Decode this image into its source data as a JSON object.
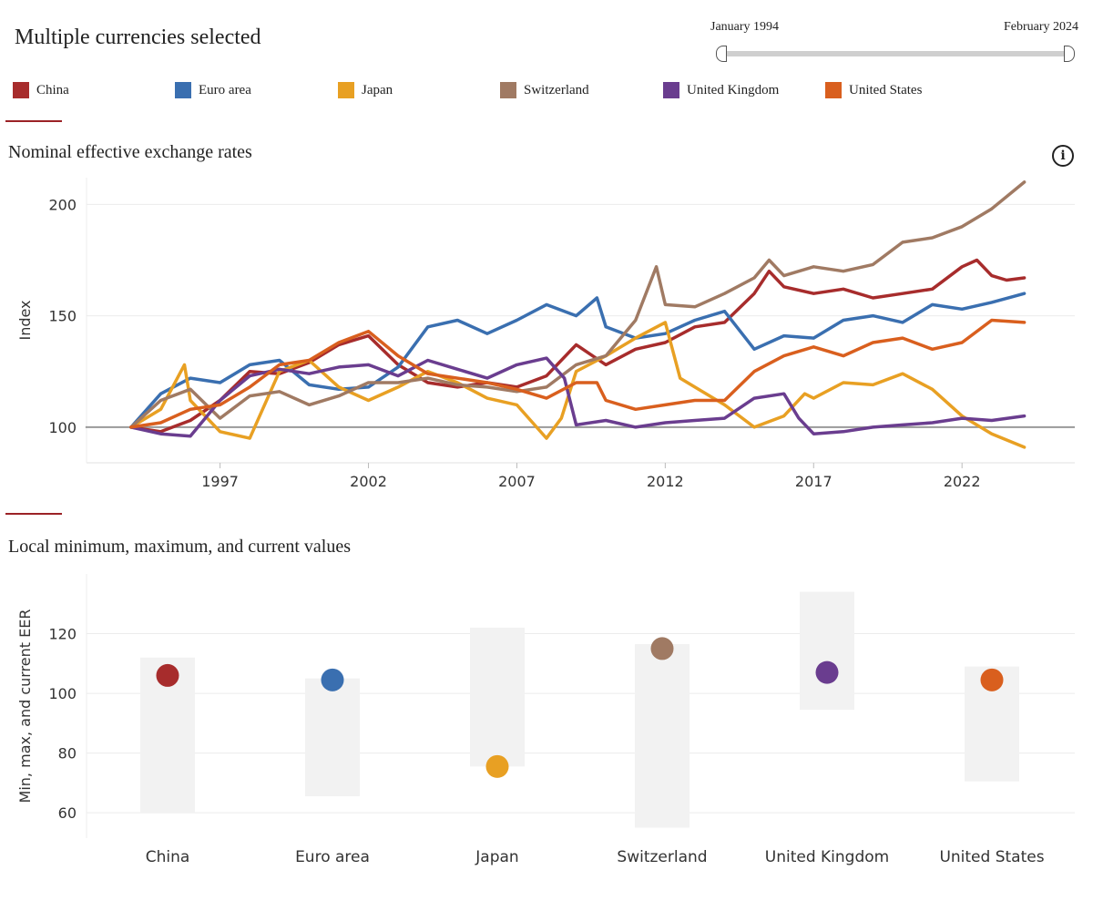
{
  "header": {
    "title": "Multiple currencies selected",
    "range_start": "January 1994",
    "range_end": "February 2024"
  },
  "legend": [
    {
      "name": "China",
      "color": "#a72c2c"
    },
    {
      "name": "Euro area",
      "color": "#3a6fb0"
    },
    {
      "name": "Japan",
      "color": "#e8a023"
    },
    {
      "name": "Switzerland",
      "color": "#a07a63"
    },
    {
      "name": "United Kingdom",
      "color": "#6a3d8f"
    },
    {
      "name": "United States",
      "color": "#d95f1e"
    }
  ],
  "line_section": {
    "title": "Nominal effective exchange rates",
    "info_icon": "info-icon"
  },
  "range_section": {
    "title": "Local minimum, maximum, and current values"
  },
  "chart_data": [
    {
      "type": "line",
      "title": "Nominal effective exchange rates",
      "xlabel": "",
      "ylabel": "Index",
      "xlim": [
        1992.5,
        2025.8
      ],
      "ylim": [
        84,
        212
      ],
      "xticks": [
        1997,
        2002,
        2007,
        2012,
        2017,
        2022
      ],
      "yticks": [
        100,
        150,
        200
      ],
      "baseline": 100,
      "series": [
        {
          "name": "China",
          "color": "#a72c2c",
          "x": [
            1994,
            1995,
            1996,
            1997,
            1998,
            1999,
            2000,
            2001,
            2002,
            2003,
            2004,
            2005,
            2006,
            2007,
            2008,
            2009,
            2010,
            2011,
            2012,
            2013,
            2014,
            2015,
            2015.5,
            2016,
            2017,
            2018,
            2019,
            2020,
            2021,
            2022,
            2022.5,
            2023,
            2023.5,
            2024.1
          ],
          "y": [
            100,
            98,
            103,
            112,
            125,
            124,
            129,
            137,
            141,
            128,
            120,
            118,
            120,
            118,
            123,
            137,
            128,
            135,
            138,
            145,
            147,
            160,
            170,
            163,
            160,
            162,
            158,
            160,
            162,
            172,
            175,
            168,
            166,
            167
          ]
        },
        {
          "name": "Euro area",
          "color": "#3a6fb0",
          "x": [
            1994,
            1995,
            1996,
            1997,
            1998,
            1999,
            2000,
            2001,
            2002,
            2003,
            2004,
            2005,
            2006,
            2007,
            2008,
            2009,
            2009.7,
            2010,
            2011,
            2012,
            2013,
            2014,
            2015,
            2016,
            2017,
            2018,
            2019,
            2020,
            2021,
            2022,
            2023,
            2024.1
          ],
          "y": [
            100,
            115,
            122,
            120,
            128,
            130,
            119,
            117,
            118,
            127,
            145,
            148,
            142,
            148,
            155,
            150,
            158,
            145,
            140,
            142,
            148,
            152,
            135,
            141,
            140,
            148,
            150,
            147,
            155,
            153,
            156,
            160
          ]
        },
        {
          "name": "Japan",
          "color": "#e8a023",
          "x": [
            1994,
            1995,
            1995.8,
            1996,
            1997,
            1998,
            1999,
            2000,
            2001,
            2002,
            2003,
            2004,
            2005,
            2006,
            2007,
            2008,
            2008.5,
            2009,
            2010,
            2011,
            2012,
            2012.5,
            2013,
            2014,
            2015,
            2016,
            2016.7,
            2017,
            2018,
            2019,
            2020,
            2021,
            2022,
            2023,
            2024.1
          ],
          "y": [
            100,
            108,
            128,
            112,
            98,
            95,
            125,
            130,
            118,
            112,
            118,
            125,
            120,
            113,
            110,
            95,
            104,
            125,
            132,
            140,
            147,
            122,
            118,
            110,
            100,
            105,
            115,
            113,
            120,
            119,
            124,
            117,
            105,
            97,
            91
          ]
        },
        {
          "name": "Switzerland",
          "color": "#a07a63",
          "x": [
            1994,
            1995,
            1996,
            1997,
            1998,
            1999,
            2000,
            2001,
            2002,
            2003,
            2004,
            2005,
            2006,
            2007,
            2008,
            2009,
            2010,
            2011,
            2011.7,
            2012,
            2013,
            2014,
            2015,
            2015.5,
            2016,
            2017,
            2018,
            2019,
            2020,
            2021,
            2022,
            2023,
            2024.1
          ],
          "y": [
            100,
            112,
            117,
            104,
            114,
            116,
            110,
            114,
            120,
            120,
            122,
            119,
            118,
            116,
            118,
            128,
            132,
            148,
            172,
            155,
            154,
            160,
            167,
            175,
            168,
            172,
            170,
            173,
            183,
            185,
            190,
            198,
            210
          ]
        },
        {
          "name": "United Kingdom",
          "color": "#6a3d8f",
          "x": [
            1994,
            1995,
            1996,
            1997,
            1998,
            1999,
            2000,
            2001,
            2002,
            2003,
            2004,
            2005,
            2006,
            2007,
            2008,
            2008.6,
            2009,
            2010,
            2011,
            2012,
            2013,
            2014,
            2015,
            2016,
            2016.5,
            2017,
            2018,
            2019,
            2020,
            2021,
            2022,
            2023,
            2024.1
          ],
          "y": [
            100,
            97,
            96,
            112,
            123,
            126,
            124,
            127,
            128,
            123,
            130,
            126,
            122,
            128,
            131,
            122,
            101,
            103,
            100,
            102,
            103,
            104,
            113,
            115,
            104,
            97,
            98,
            100,
            101,
            102,
            104,
            103,
            105
          ]
        },
        {
          "name": "United States",
          "color": "#d95f1e",
          "x": [
            1994,
            1995,
            1996,
            1997,
            1998,
            1999,
            2000,
            2001,
            2002,
            2003,
            2004,
            2005,
            2006,
            2007,
            2008,
            2009,
            2009.7,
            2010,
            2011,
            2012,
            2013,
            2014,
            2015,
            2016,
            2017,
            2018,
            2019,
            2020,
            2021,
            2022,
            2023,
            2024.1
          ],
          "y": [
            100,
            102,
            108,
            110,
            118,
            128,
            130,
            138,
            143,
            132,
            124,
            122,
            120,
            117,
            113,
            120,
            120,
            112,
            108,
            110,
            112,
            112,
            125,
            132,
            136,
            132,
            138,
            140,
            135,
            138,
            148,
            147
          ]
        }
      ]
    },
    {
      "type": "range",
      "title": "Local minimum, maximum, and current values",
      "xlabel": "",
      "ylabel": "Min, max, and current EER",
      "ylim": [
        51.5,
        140
      ],
      "yticks": [
        60,
        80,
        100,
        120
      ],
      "categories": [
        "China",
        "Euro area",
        "Japan",
        "Switzerland",
        "United Kingdom",
        "United States"
      ],
      "min": [
        60,
        65.5,
        75.5,
        55,
        94.5,
        70.5
      ],
      "max": [
        112,
        105,
        122,
        116.5,
        134,
        109
      ],
      "current": [
        106,
        104.5,
        75.5,
        115,
        107,
        104.5
      ],
      "colors": [
        "#a72c2c",
        "#3a6fb0",
        "#e8a023",
        "#a07a63",
        "#6a3d8f",
        "#d95f1e"
      ]
    }
  ]
}
